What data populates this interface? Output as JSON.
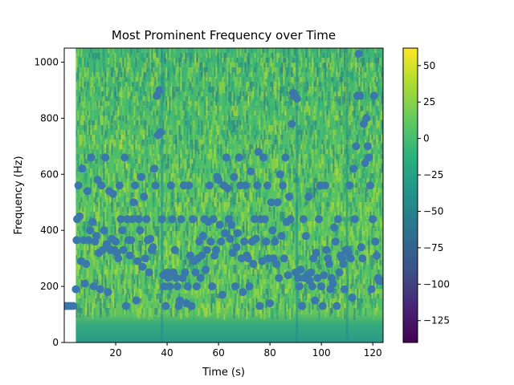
{
  "chart_data": {
    "type": "scatter",
    "title": "Most Prominent Frequency over Time",
    "xlabel": "Time (s)",
    "ylabel": "Frequency (Hz)",
    "xlim": [
      0,
      124
    ],
    "ylim": [
      0,
      1050
    ],
    "xticks": [
      20,
      40,
      60,
      80,
      100,
      120
    ],
    "yticks": [
      0,
      200,
      400,
      600,
      800,
      1000
    ],
    "background": "spectrogram (viridis) spanning the full time range, with brighter yellow-green streaks around 40-1050 Hz and a darker teal band below ~40 Hz",
    "spectrogram_start_time": 4.5,
    "colorbar": {
      "colormap": "viridis",
      "range": [
        -140,
        62
      ],
      "ticks": [
        50,
        25,
        0,
        -25,
        -50,
        -75,
        -100,
        -125
      ]
    },
    "marker_color": "#3a77ab",
    "series": [
      {
        "name": "",
        "points": [
          [
            0.5,
            130
          ],
          [
            1.5,
            130
          ],
          [
            2.5,
            130
          ],
          [
            3.5,
            130
          ],
          [
            4.5,
            190
          ],
          [
            4.8,
            365
          ],
          [
            5,
            440
          ],
          [
            5.5,
            560
          ],
          [
            6,
            450
          ],
          [
            6.5,
            290
          ],
          [
            7,
            620
          ],
          [
            7.5,
            365
          ],
          [
            8,
            210
          ],
          [
            8.5,
            280
          ],
          [
            9,
            540
          ],
          [
            9.5,
            365
          ],
          [
            10,
            400
          ],
          [
            10.5,
            660
          ],
          [
            11,
            430
          ],
          [
            11.5,
            200
          ],
          [
            12,
            360
          ],
          [
            12.5,
            380
          ],
          [
            13,
            580
          ],
          [
            13.5,
            320
          ],
          [
            14,
            190
          ],
          [
            14.5,
            560
          ],
          [
            15,
            330
          ],
          [
            15.5,
            400
          ],
          [
            16,
            660
          ],
          [
            16.5,
            350
          ],
          [
            17,
            180
          ],
          [
            17.5,
            540
          ],
          [
            18,
            330
          ],
          [
            18.5,
            370
          ],
          [
            19,
            530
          ],
          [
            19.5,
            330
          ],
          [
            20,
            360
          ],
          [
            20.5,
            320
          ],
          [
            21,
            300
          ],
          [
            21.5,
            560
          ],
          [
            22,
            440
          ],
          [
            22.5,
            400
          ],
          [
            23,
            330
          ],
          [
            23.5,
            660
          ],
          [
            24,
            130
          ],
          [
            24.5,
            440
          ],
          [
            25,
            365
          ],
          [
            25.5,
            310
          ],
          [
            26,
            365
          ],
          [
            26.5,
            440
          ],
          [
            27,
            500
          ],
          [
            27.5,
            560
          ],
          [
            28,
            150
          ],
          [
            28.5,
            290
          ],
          [
            29,
            440
          ],
          [
            29.5,
            400
          ],
          [
            30,
            590
          ],
          [
            30.5,
            270
          ],
          [
            31,
            520
          ],
          [
            31.5,
            300
          ],
          [
            32,
            440
          ],
          [
            32.5,
            365
          ],
          [
            33,
            250
          ],
          [
            33.5,
            370
          ],
          [
            34,
            330
          ],
          [
            34.5,
            340
          ],
          [
            35,
            620
          ],
          [
            35.5,
            560
          ],
          [
            36,
            880
          ],
          [
            36.5,
            740
          ],
          [
            37,
            900
          ],
          [
            37.5,
            750
          ],
          [
            38,
            440
          ],
          [
            38.5,
            240
          ],
          [
            39,
            200
          ],
          [
            39.5,
            130
          ],
          [
            40,
            250
          ],
          [
            40.5,
            230
          ],
          [
            41,
            200
          ],
          [
            41.5,
            560
          ],
          [
            42,
            440
          ],
          [
            42.5,
            250
          ],
          [
            43,
            330
          ],
          [
            43.5,
            230
          ],
          [
            44,
            200
          ],
          [
            44.5,
            130
          ],
          [
            45,
            150
          ],
          [
            45.5,
            440
          ],
          [
            46,
            230
          ],
          [
            46.5,
            560
          ],
          [
            47,
            250
          ],
          [
            47.5,
            140
          ],
          [
            48,
            200
          ],
          [
            48.5,
            560
          ],
          [
            49,
            310
          ],
          [
            49.5,
            130
          ],
          [
            50,
            440
          ],
          [
            50.5,
            290
          ],
          [
            51,
            250
          ],
          [
            51.5,
            200
          ],
          [
            52,
            300
          ],
          [
            52.5,
            360
          ],
          [
            53,
            230
          ],
          [
            53.5,
            310
          ],
          [
            54,
            380
          ],
          [
            54.5,
            440
          ],
          [
            55,
            260
          ],
          [
            55.5,
            330
          ],
          [
            56,
            430
          ],
          [
            56.5,
            560
          ],
          [
            57,
            360
          ],
          [
            57.5,
            200
          ],
          [
            58,
            440
          ],
          [
            58.5,
            310
          ],
          [
            59,
            330
          ],
          [
            59.5,
            590
          ],
          [
            60,
            580
          ],
          [
            60.5,
            420
          ],
          [
            61,
            360
          ],
          [
            61.5,
            170
          ],
          [
            62,
            560
          ],
          [
            62.5,
            390
          ],
          [
            63,
            660
          ],
          [
            63.5,
            550
          ],
          [
            64,
            440
          ],
          [
            64.5,
            370
          ],
          [
            65,
            420
          ],
          [
            65.5,
            320
          ],
          [
            66,
            590
          ],
          [
            66.5,
            200
          ],
          [
            67,
            340
          ],
          [
            67.5,
            390
          ],
          [
            68,
            660
          ],
          [
            68.5,
            560
          ],
          [
            69,
            300
          ],
          [
            69.5,
            180
          ],
          [
            70,
            360
          ],
          [
            70.5,
            560
          ],
          [
            71,
            310
          ],
          [
            71.5,
            300
          ],
          [
            72,
            200
          ],
          [
            72.5,
            610
          ],
          [
            73,
            360
          ],
          [
            73.5,
            280
          ],
          [
            74,
            440
          ],
          [
            74.5,
            370
          ],
          [
            75,
            560
          ],
          [
            75.5,
            680
          ],
          [
            76,
            130
          ],
          [
            76.5,
            440
          ],
          [
            77,
            290
          ],
          [
            77.5,
            660
          ],
          [
            78,
            440
          ],
          [
            78.5,
            360
          ],
          [
            79,
            560
          ],
          [
            79.5,
            300
          ],
          [
            80,
            140
          ],
          [
            80.5,
            500
          ],
          [
            81,
            400
          ],
          [
            81.5,
            300
          ],
          [
            82,
            360
          ],
          [
            82.5,
            280
          ],
          [
            83,
            500
          ],
          [
            83.5,
            230
          ],
          [
            84,
            600
          ],
          [
            84.5,
            380
          ],
          [
            85,
            560
          ],
          [
            85.5,
            300
          ],
          [
            86,
            660
          ],
          [
            86.5,
            430
          ],
          [
            87,
            240
          ],
          [
            87.5,
            520
          ],
          [
            88,
            440
          ],
          [
            88.5,
            780
          ],
          [
            89,
            890
          ],
          [
            89.5,
            880
          ],
          [
            90,
            250
          ],
          [
            90.5,
            870
          ],
          [
            91,
            230
          ],
          [
            91.5,
            200
          ],
          [
            92,
            260
          ],
          [
            92.5,
            130
          ],
          [
            93,
            440
          ],
          [
            93.5,
            230
          ],
          [
            94,
            380
          ],
          [
            94.5,
            240
          ],
          [
            95,
            520
          ],
          [
            95.5,
            220
          ],
          [
            96,
            250
          ],
          [
            96.5,
            200
          ],
          [
            97,
            300
          ],
          [
            97.5,
            150
          ],
          [
            98,
            320
          ],
          [
            98.5,
            230
          ],
          [
            99,
            440
          ],
          [
            99.5,
            560
          ],
          [
            100,
            200
          ],
          [
            100.5,
            130
          ],
          [
            101,
            240
          ],
          [
            101.5,
            560
          ],
          [
            102,
            330
          ],
          [
            102.5,
            300
          ],
          [
            103,
            280
          ],
          [
            103.5,
            190
          ],
          [
            104,
            230
          ],
          [
            104.5,
            210
          ],
          [
            105,
            410
          ],
          [
            105.5,
            360
          ],
          [
            106,
            130
          ],
          [
            106.5,
            440
          ],
          [
            107,
            250
          ],
          [
            107.5,
            310
          ],
          [
            108,
            300
          ],
          [
            108.5,
            280
          ],
          [
            109,
            190
          ],
          [
            109.5,
            330
          ],
          [
            110,
            330
          ],
          [
            110.5,
            320
          ],
          [
            111,
            560
          ],
          [
            111.5,
            300
          ],
          [
            112,
            160
          ],
          [
            112.5,
            620
          ],
          [
            113,
            440
          ],
          [
            113.5,
            700
          ],
          [
            114,
            880
          ],
          [
            114.5,
            1030
          ],
          [
            115,
            880
          ],
          [
            115.5,
            340
          ],
          [
            116,
            300
          ],
          [
            116.5,
            780
          ],
          [
            117,
            640
          ],
          [
            117.5,
            800
          ],
          [
            118,
            700
          ],
          [
            118.5,
            660
          ],
          [
            119,
            560
          ],
          [
            119.5,
            190
          ],
          [
            120,
            440
          ],
          [
            120.5,
            880
          ],
          [
            121,
            360
          ],
          [
            121.5,
            310
          ],
          [
            122,
            230
          ],
          [
            122.5,
            220
          ],
          [
            123,
            220
          ],
          [
            123.5,
            220
          ]
        ]
      }
    ]
  }
}
